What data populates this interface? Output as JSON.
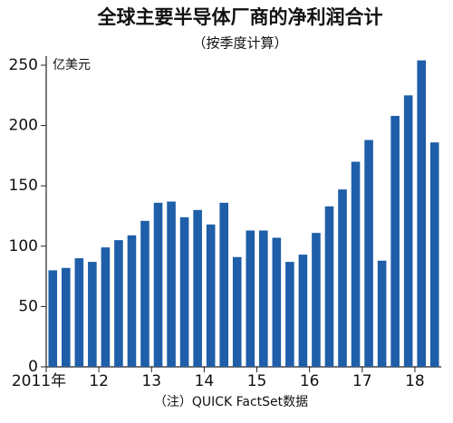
{
  "chart_data": {
    "type": "bar",
    "title": "全球主要半导体厂商的净利润合计",
    "subtitle": "（按季度计算）",
    "y_label": "亿美元",
    "note": "（注）QUICK FactSet数据",
    "categories": [
      "2011年",
      null,
      null,
      null,
      "12",
      null,
      null,
      null,
      "13",
      null,
      null,
      null,
      "14",
      null,
      null,
      null,
      "15",
      null,
      null,
      null,
      "16",
      null,
      null,
      null,
      "17",
      null,
      null,
      null,
      "18",
      null
    ],
    "values": [
      80,
      82,
      90,
      87,
      99,
      105,
      109,
      121,
      136,
      137,
      124,
      130,
      118,
      136,
      91,
      113,
      113,
      107,
      87,
      93,
      111,
      133,
      147,
      170,
      188,
      88,
      208,
      225,
      254,
      186
    ],
    "color": "#1f5ea8",
    "ylim": [
      0,
      262
    ],
    "yticks": [
      0,
      50,
      100,
      150,
      200,
      250
    ]
  }
}
